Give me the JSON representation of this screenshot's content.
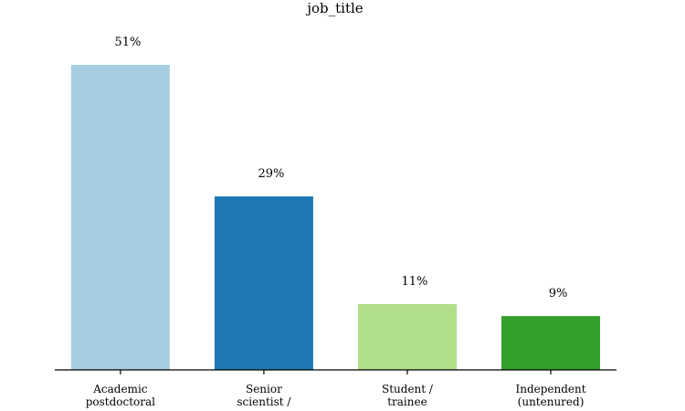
{
  "chart_data": {
    "type": "bar",
    "title": "job_title",
    "categories": [
      [
        "Academic",
        "postdoctoral"
      ],
      [
        "Senior",
        "scientist /"
      ],
      [
        "Student /",
        "trainee"
      ],
      [
        "Independent",
        "(untenured)"
      ]
    ],
    "values": [
      51,
      29,
      11,
      9
    ],
    "value_labels": [
      "51%",
      "29%",
      "11%",
      "9%"
    ],
    "colors": [
      "#a6cee3",
      "#1f78b4",
      "#b2df8a",
      "#33a02c"
    ],
    "ylim": [
      0,
      55
    ],
    "grid": false,
    "legend": "none"
  }
}
